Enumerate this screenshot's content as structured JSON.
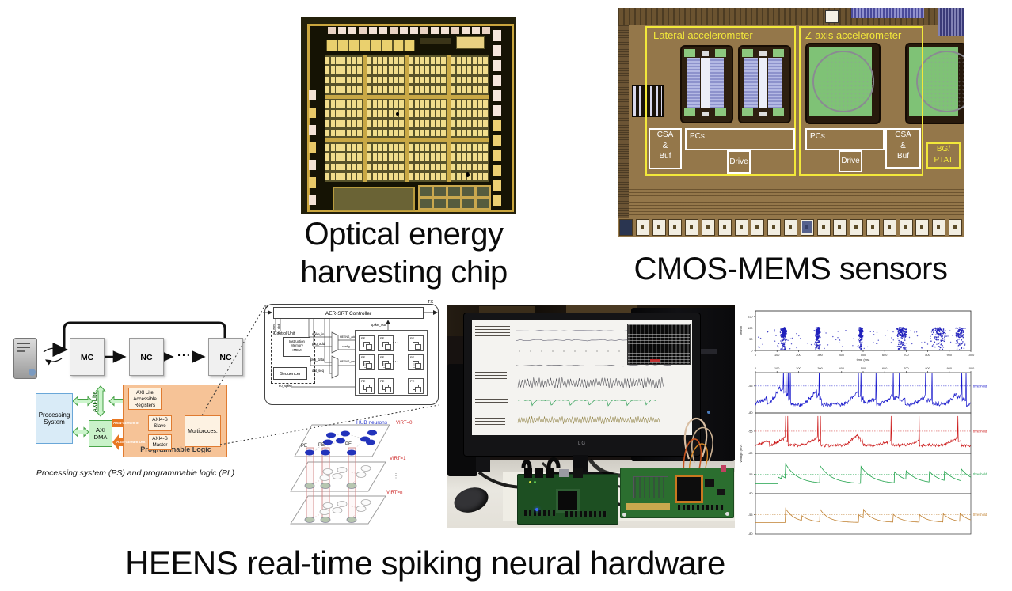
{
  "captions": {
    "optical_line1": "Optical energy",
    "optical_line2": "harvesting chip",
    "cmos": "CMOS-MEMS sensors",
    "heens": "HEENS real-time spiking neural hardware"
  },
  "cmos_chip": {
    "labels": {
      "lateral": "Lateral accelerometer",
      "zaxis": "Z-axis accelerometer",
      "csa_buf_left": "CSA\n&\nBuf",
      "pcs_left": "PCs",
      "drive_left": "Drive",
      "pcs_right": "PCs",
      "drive_right": "Drive",
      "csa_buf_right": "CSA\n&\nBuf",
      "bg_ptat": "BG/\nPTAT"
    },
    "colors": {
      "annotation_yellow": "#f2e83a",
      "annotation_white": "#ffffff",
      "die_brown": "#94774a"
    }
  },
  "ps_pl_diagram": {
    "mc": "MC",
    "nc1": "NC",
    "dots": "...",
    "nc2": "NC",
    "processing_system": "Processing\nSystem",
    "axi_lite": "AXI-Lite",
    "axi_dma": "AXI\nDMA",
    "registers": "AXI Lite\nAccessible\nRegisters",
    "axi4s_slave": "AXI4-S\nSlave",
    "axi4s_master": "AXI4-S\nMaster",
    "multiproc": "Multiproces.",
    "stream_in": "AXI4-Stream In",
    "stream_out": "AXI4-Stream Out",
    "prog_logic": "Programmable Logic",
    "caption": "Processing system (PS) and programmable logic (PL)",
    "colors": {
      "ps_blue": "#d9ebf7",
      "axi_green": "#c9f2c9",
      "pl_orange": "#f6c397",
      "arrow_orange": "#e87722"
    }
  },
  "aer_diagram": {
    "controller": "AER-SRT Controller",
    "tx": "TX",
    "rx": "RX",
    "control_unit": "Control Unit",
    "imem": "Instruction\nMemory\nIMEM",
    "sequencer": "Sequencer",
    "sig_left": [
      "eo_exec",
      "eo_clkd"
    ],
    "sig_bus": [
      "spike_in",
      "pkg_add",
      "pkg_data",
      "dat_seq"
    ],
    "sig_mid": [
      "HEENS_add",
      "config",
      "HEENS_seq"
    ],
    "spike_out": "spike_out",
    "eo_spike": "eo_spike",
    "pe": "PE"
  },
  "hub_diagram": {
    "hub_neurons": "HUB neurons",
    "virt0": "VIRT=0",
    "virt1": "VIRT=1",
    "virtn": "VIRT=n",
    "pe": "PE"
  },
  "photo": {
    "monitor_brand": "LG"
  },
  "chart_data": [
    {
      "type": "scatter",
      "title": "",
      "xlabel": "time (ms)",
      "ylabel": "neuron",
      "xlim": [
        0,
        1000
      ],
      "ylim": [
        0,
        175
      ],
      "xticks": [
        0,
        100,
        200,
        300,
        400,
        500,
        600,
        700,
        800,
        900,
        1000
      ],
      "yticks": [
        0,
        50,
        100,
        150
      ],
      "color": "#2020bb",
      "n_neurons": 100,
      "bursts": [
        {
          "t": 130,
          "w": 16,
          "n": 170
        },
        {
          "t": 290,
          "w": 13,
          "n": 170
        },
        {
          "t": 490,
          "w": 11,
          "n": 150
        },
        {
          "t": 680,
          "w": 26,
          "n": 150
        },
        {
          "t": 855,
          "w": 42,
          "n": 110
        },
        {
          "t": 950,
          "w": 28,
          "n": 90
        }
      ],
      "background_dots": 110
    },
    {
      "type": "line",
      "ylabel": "voltage (mV)",
      "xlim": [
        0,
        1000
      ],
      "xticks": [
        0,
        100,
        200,
        300,
        400,
        500,
        600,
        700,
        800,
        900,
        1000
      ],
      "threshold_label": "threshold",
      "subplots": [
        {
          "name": "membrane-1",
          "color": "#1a1acc",
          "style": "noisy",
          "threshold": -55,
          "ylim": [
            -85,
            -45
          ],
          "yticks": [
            -55,
            -80
          ],
          "baseline": -72,
          "noise": 2.6,
          "spikes": [
            55,
            115,
            130,
            142,
            152,
            162,
            285,
            296,
            307,
            478,
            490,
            501,
            560,
            640,
            668,
            695,
            790,
            820,
            935,
            958,
            978
          ]
        },
        {
          "name": "membrane-2",
          "color": "#cc1a1a",
          "style": "noisy",
          "threshold": -55,
          "ylim": [
            -85,
            -45
          ],
          "yticks": [
            -55,
            -80
          ],
          "baseline": -71,
          "noise": 2.2,
          "spikes": [
            65,
            140,
            150,
            290,
            302,
            475,
            487,
            499,
            630,
            760,
            940,
            955
          ]
        },
        {
          "name": "membrane-3",
          "color": "#1fa24a",
          "style": "decay",
          "threshold": -55,
          "ylim": [
            -80,
            -45
          ],
          "yticks": [
            -55,
            -80
          ],
          "baseline": -60.5,
          "tau": 55,
          "peaks": [
            [
              105,
              -56.5
            ],
            [
              122,
              -55.8
            ],
            [
              140,
              -49.0
            ],
            [
              300,
              -50.0
            ],
            [
              490,
              -50.5
            ],
            [
              645,
              -53.5
            ],
            [
              700,
              -53.0
            ],
            [
              808,
              -53.5
            ],
            [
              878,
              -53.2
            ],
            [
              955,
              -51.8
            ]
          ]
        },
        {
          "name": "membrane-4",
          "color": "#c08030",
          "style": "decay",
          "threshold": -55,
          "ylim": [
            -80,
            -45
          ],
          "yticks": [
            -55,
            -80
          ],
          "baseline": -59.5,
          "tau": 40,
          "peaks": [
            [
              140,
              -51.5
            ],
            [
              215,
              -55.5
            ],
            [
              300,
              -51.8
            ],
            [
              480,
              -55.0
            ],
            [
              502,
              -52.0
            ],
            [
              640,
              -54.8
            ],
            [
              762,
              -55.0
            ],
            [
              872,
              -54.5
            ],
            [
              950,
              -54.2
            ]
          ]
        }
      ]
    }
  ]
}
